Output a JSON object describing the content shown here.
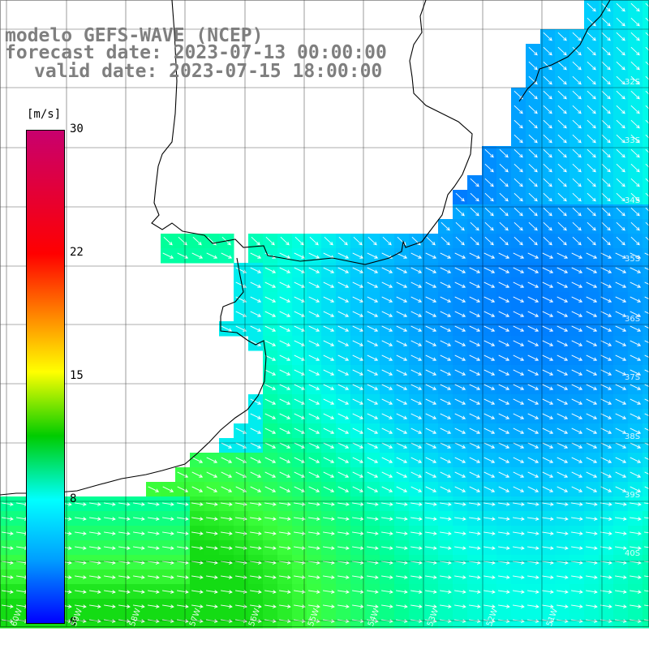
{
  "title": {
    "line1": "modelo GEFS-WAVE (NCEP)",
    "line2": "forecast date: 2023-07-13 00:00:00",
    "line3": "valid date: 2023-07-15 18:00:00"
  },
  "colorbar": {
    "unit": "[m/s]",
    "ticks": [
      "30",
      "22",
      "15",
      "8",
      "0"
    ],
    "colors": [
      "#c8006e",
      "#ff0000",
      "#ff8000",
      "#ffff00",
      "#00cc00",
      "#00ffff",
      "#00a0ff",
      "#0000ff"
    ]
  },
  "lat_labels": [
    "32S",
    "33S",
    "34S",
    "35S",
    "36S",
    "37S",
    "38S",
    "39S",
    "40S"
  ],
  "lon_labels": [
    "60W",
    "59W",
    "58W",
    "57W",
    "56W",
    "55W",
    "54W",
    "53W",
    "52W",
    "51W"
  ],
  "colors": {
    "land": "#ffffff",
    "grid": "#000000",
    "arrow": "#ffffff",
    "title": "#7f7f7f"
  }
}
